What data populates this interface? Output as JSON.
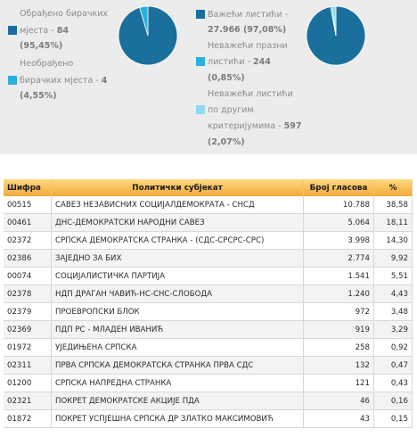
{
  "left_stats": {
    "processed_line1": "Обрађено бирачких",
    "processed_line2": "мјеста",
    "processed_value": "84",
    "processed_pct": "(95,45%)",
    "unprocessed_line1": "Необрађено",
    "unprocessed_line2": "бирачких мјеста",
    "unprocessed_value": "4",
    "unprocessed_pct": "(4,55%)"
  },
  "right_stats": {
    "valid_label": "Важећи листићи",
    "valid_value": "27.966 (97,08%)",
    "blank_line1": "Неважећи празни",
    "blank_line2": "листићи",
    "blank_value": "244",
    "blank_pct": "(0,85%)",
    "other_line1": "Неважећи листићи",
    "other_line2": "по другим",
    "other_line3": "критеријумима",
    "other_value": "597",
    "other_pct": "(2,07%)"
  },
  "colors": {
    "dark_blue": "#1a6fa0",
    "mid_blue": "#2ab0dd",
    "light_blue": "#8fd8f0",
    "pie_main": "#1a6f9c"
  },
  "chart_data": [
    {
      "type": "pie",
      "series": [
        {
          "label": "Обрађено бирачких мјеста",
          "value": 95.45,
          "color": "#1a6f9c"
        },
        {
          "label": "Необрађено бирачких мјеста",
          "value": 4.55,
          "color": "#2ab0dd"
        }
      ]
    },
    {
      "type": "pie",
      "series": [
        {
          "label": "Важећи листићи",
          "value": 97.08,
          "color": "#1a6f9c"
        },
        {
          "label": "Неважећи празни листићи",
          "value": 0.85,
          "color": "#2ab0dd"
        },
        {
          "label": "Неважећи листићи по другим критеријумима",
          "value": 2.07,
          "color": "#8fd8f0"
        }
      ]
    }
  ],
  "table": {
    "headers": [
      "Шифра",
      "Политички субјекат",
      "Број гласова",
      "%"
    ],
    "rows": [
      [
        "00515",
        "САВЕЗ НЕЗАВИСНИХ СОЦИЈАЛДЕМОКРАТА - СНСД",
        "10.788",
        "38,58"
      ],
      [
        "00461",
        "ДНС-ДЕМОКРАТСКИ НАРОДНИ САВЕЗ",
        "5.064",
        "18,11"
      ],
      [
        "02372",
        "СРПСКА ДЕМОКРАТСКА СТРАНКА - (СДС-СРСРС-СРС)",
        "3.998",
        "14,30"
      ],
      [
        "02386",
        "ЗАЈЕДНО ЗА БИХ",
        "2.774",
        "9,92"
      ],
      [
        "00074",
        "СОЦИЈАЛИСТИЧКА ПАРТИЈА",
        "1.541",
        "5,51"
      ],
      [
        "02378",
        "НДП ДРАГАН ЧАВИЋ-НС-СНС-СЛОБОДА",
        "1.240",
        "4,43"
      ],
      [
        "02379",
        "ПРОЕВРОПСКИ БЛОК",
        "972",
        "3,48"
      ],
      [
        "02369",
        "ПДП РС - МЛАДЕН ИВАНИЋ",
        "919",
        "3,29"
      ],
      [
        "01972",
        "УЈЕДИЊЕНА СРПСКА",
        "258",
        "0,92"
      ],
      [
        "02311",
        "ПРВА СРПСКА ДЕМОКРАТСКА СТРАНКА ПРВА СДС",
        "132",
        "0,47"
      ],
      [
        "01200",
        "СРПСКА НАПРЕДНА СТРАНКА",
        "121",
        "0,43"
      ],
      [
        "02321",
        "ПОКРЕТ ДЕМОКРАТСКЕ АКЦИЈЕ ПДА",
        "46",
        "0,16"
      ],
      [
        "01872",
        "ПОКРЕТ УСПЈЕШНА СРПСКА ДР ЗЛАТКО МАКСИМОВИЋ",
        "43",
        "0,15"
      ]
    ]
  }
}
